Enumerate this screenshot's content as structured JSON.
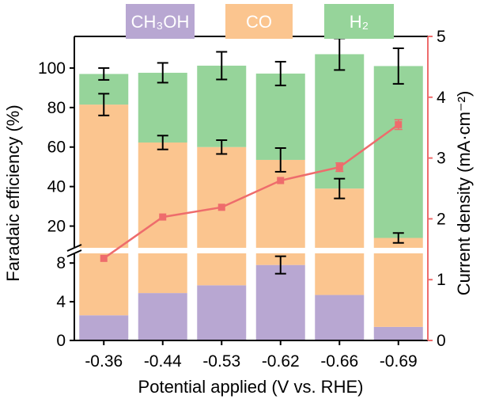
{
  "chart_data": {
    "type": "bar",
    "stacked": true,
    "broken_y_axis": true,
    "xlabel": "Potential applied (V vs. RHE)",
    "ylabel": "Faradaic efficiency (%)",
    "y2label": "Current density (mA·cm⁻²)",
    "categories": [
      "-0.36",
      "-0.44",
      "-0.53",
      "-0.62",
      "-0.66",
      "-0.69"
    ],
    "series": [
      {
        "name": "CH₃OH",
        "color": "#b8a7d2",
        "values": [
          2.6,
          4.9,
          5.7,
          7.8,
          4.7,
          1.4
        ],
        "errors": [
          null,
          null,
          null,
          0.9,
          null,
          null
        ]
      },
      {
        "name": "CO",
        "color": "#fbc58f",
        "values": [
          78.9,
          57.4,
          54.3,
          45.7,
          34.3,
          12.6
        ],
        "errors": [
          5.5,
          3.5,
          3.5,
          6,
          5,
          2.5
        ]
      },
      {
        "name": "H₂",
        "color": "#96d49a",
        "values": [
          15.5,
          35.3,
          41.2,
          43.7,
          68,
          87
        ],
        "errors": [
          3,
          5,
          7,
          6,
          8,
          9
        ]
      }
    ],
    "current_density": {
      "color": "#ee6c6c",
      "values": [
        1.35,
        2.03,
        2.19,
        2.63,
        2.85,
        3.55
      ],
      "errors": [
        null,
        null,
        null,
        null,
        0.07,
        0.08
      ]
    },
    "y_lower": {
      "range": [
        0,
        9
      ],
      "ticks": [
        "0",
        "4",
        "8"
      ]
    },
    "y_upper": {
      "range": [
        9,
        116
      ],
      "ticks": [
        "20",
        "40",
        "60",
        "80",
        "100"
      ]
    },
    "y2": {
      "range": [
        0,
        5
      ],
      "ticks": [
        "0",
        "1",
        "2",
        "3",
        "4",
        "5"
      ]
    },
    "legend_position": "top"
  }
}
